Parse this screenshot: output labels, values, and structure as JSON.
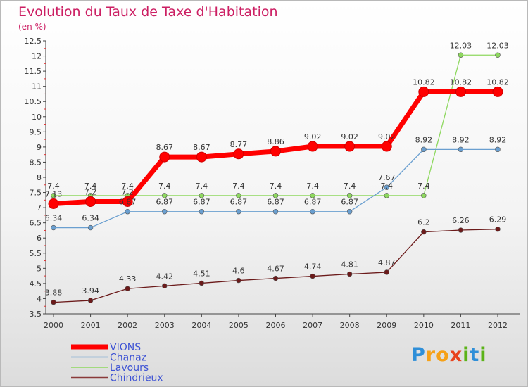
{
  "page": {
    "title": "Evolution du Taux de Taxe d'Habitation",
    "subtitle": "(en %)",
    "brand": {
      "letters": [
        "P",
        "r",
        "o",
        "x",
        "i",
        "t",
        "i"
      ],
      "colors": [
        "#2f8fd8",
        "#f6a117",
        "#f6a117",
        "#e8431d",
        "#5bb318",
        "#2f8fd8",
        "#5bb318"
      ]
    }
  },
  "chart_data": {
    "type": "line",
    "title": "Evolution du Taux de Taxe d'Habitation",
    "ylabel": "(en %)",
    "xlabel": "",
    "ylim": [
      3.5,
      12.5
    ],
    "yticks": [
      "3.5",
      "4",
      "4.5",
      "5",
      "5.5",
      "6",
      "6.5",
      "7",
      "7.5",
      "8",
      "8.5",
      "9",
      "9.5",
      "10",
      "10.5",
      "11",
      "11.5",
      "12",
      "12.5"
    ],
    "categories": [
      "2000",
      "2001",
      "2002",
      "2003",
      "2004",
      "2005",
      "2006",
      "2007",
      "2008",
      "2009",
      "2010",
      "2011",
      "2012"
    ],
    "grid": false,
    "legend_position": "bottom-left",
    "series": [
      {
        "name": "Chindrieux",
        "color": "#6b1a1a",
        "legend_color": "#8a3a3a",
        "values": [
          3.88,
          3.94,
          4.33,
          4.42,
          4.51,
          4.6,
          4.67,
          4.74,
          4.81,
          4.87,
          6.2,
          6.26,
          6.29
        ],
        "labels": [
          "3.88",
          "3.94",
          "4.33",
          "4.42",
          "4.51",
          "4.6",
          "4.67",
          "4.74",
          "4.81",
          "4.87",
          "6.2",
          "6.26",
          "6.29"
        ]
      },
      {
        "name": "Lavours",
        "color": "#8ed85f",
        "legend_color": "#8ed85f",
        "values": [
          7.4,
          7.4,
          7.4,
          7.4,
          7.4,
          7.4,
          7.4,
          7.4,
          7.4,
          7.4,
          7.4,
          12.03,
          12.03
        ],
        "labels": [
          "7.4",
          "7.4",
          "7.4",
          "7.4",
          "7.4",
          "7.4",
          "7.4",
          "7.4",
          "7.4",
          "7.4",
          "7.4",
          "12.03",
          "12.03"
        ]
      },
      {
        "name": "Chanaz",
        "color": "#6a9fd0",
        "legend_color": "#6a9fd0",
        "values": [
          6.34,
          6.34,
          6.87,
          6.87,
          6.87,
          6.87,
          6.87,
          6.87,
          6.87,
          7.67,
          8.92,
          8.92,
          8.92
        ],
        "labels": [
          "6.34",
          "6.34",
          "6.87",
          "6.87",
          "6.87",
          "6.87",
          "6.87",
          "6.87",
          "6.87",
          "7.67",
          "8.92",
          "8.92",
          "8.92"
        ]
      },
      {
        "name": "VIONS",
        "color": "#ff0000",
        "legend_color": "#ff0000",
        "values": [
          7.13,
          7.2,
          7.2,
          8.67,
          8.67,
          8.77,
          8.86,
          9.02,
          9.02,
          9.02,
          10.82,
          10.82,
          10.82
        ],
        "labels": [
          "7.13",
          "7.2",
          "7.2",
          "8.67",
          "8.67",
          "8.77",
          "8.86",
          "9.02",
          "9.02",
          "9.02",
          "10.82",
          "10.82",
          "10.82"
        ]
      }
    ],
    "legend_order": [
      "VIONS",
      "Chanaz",
      "Lavours",
      "Chindrieux"
    ]
  }
}
